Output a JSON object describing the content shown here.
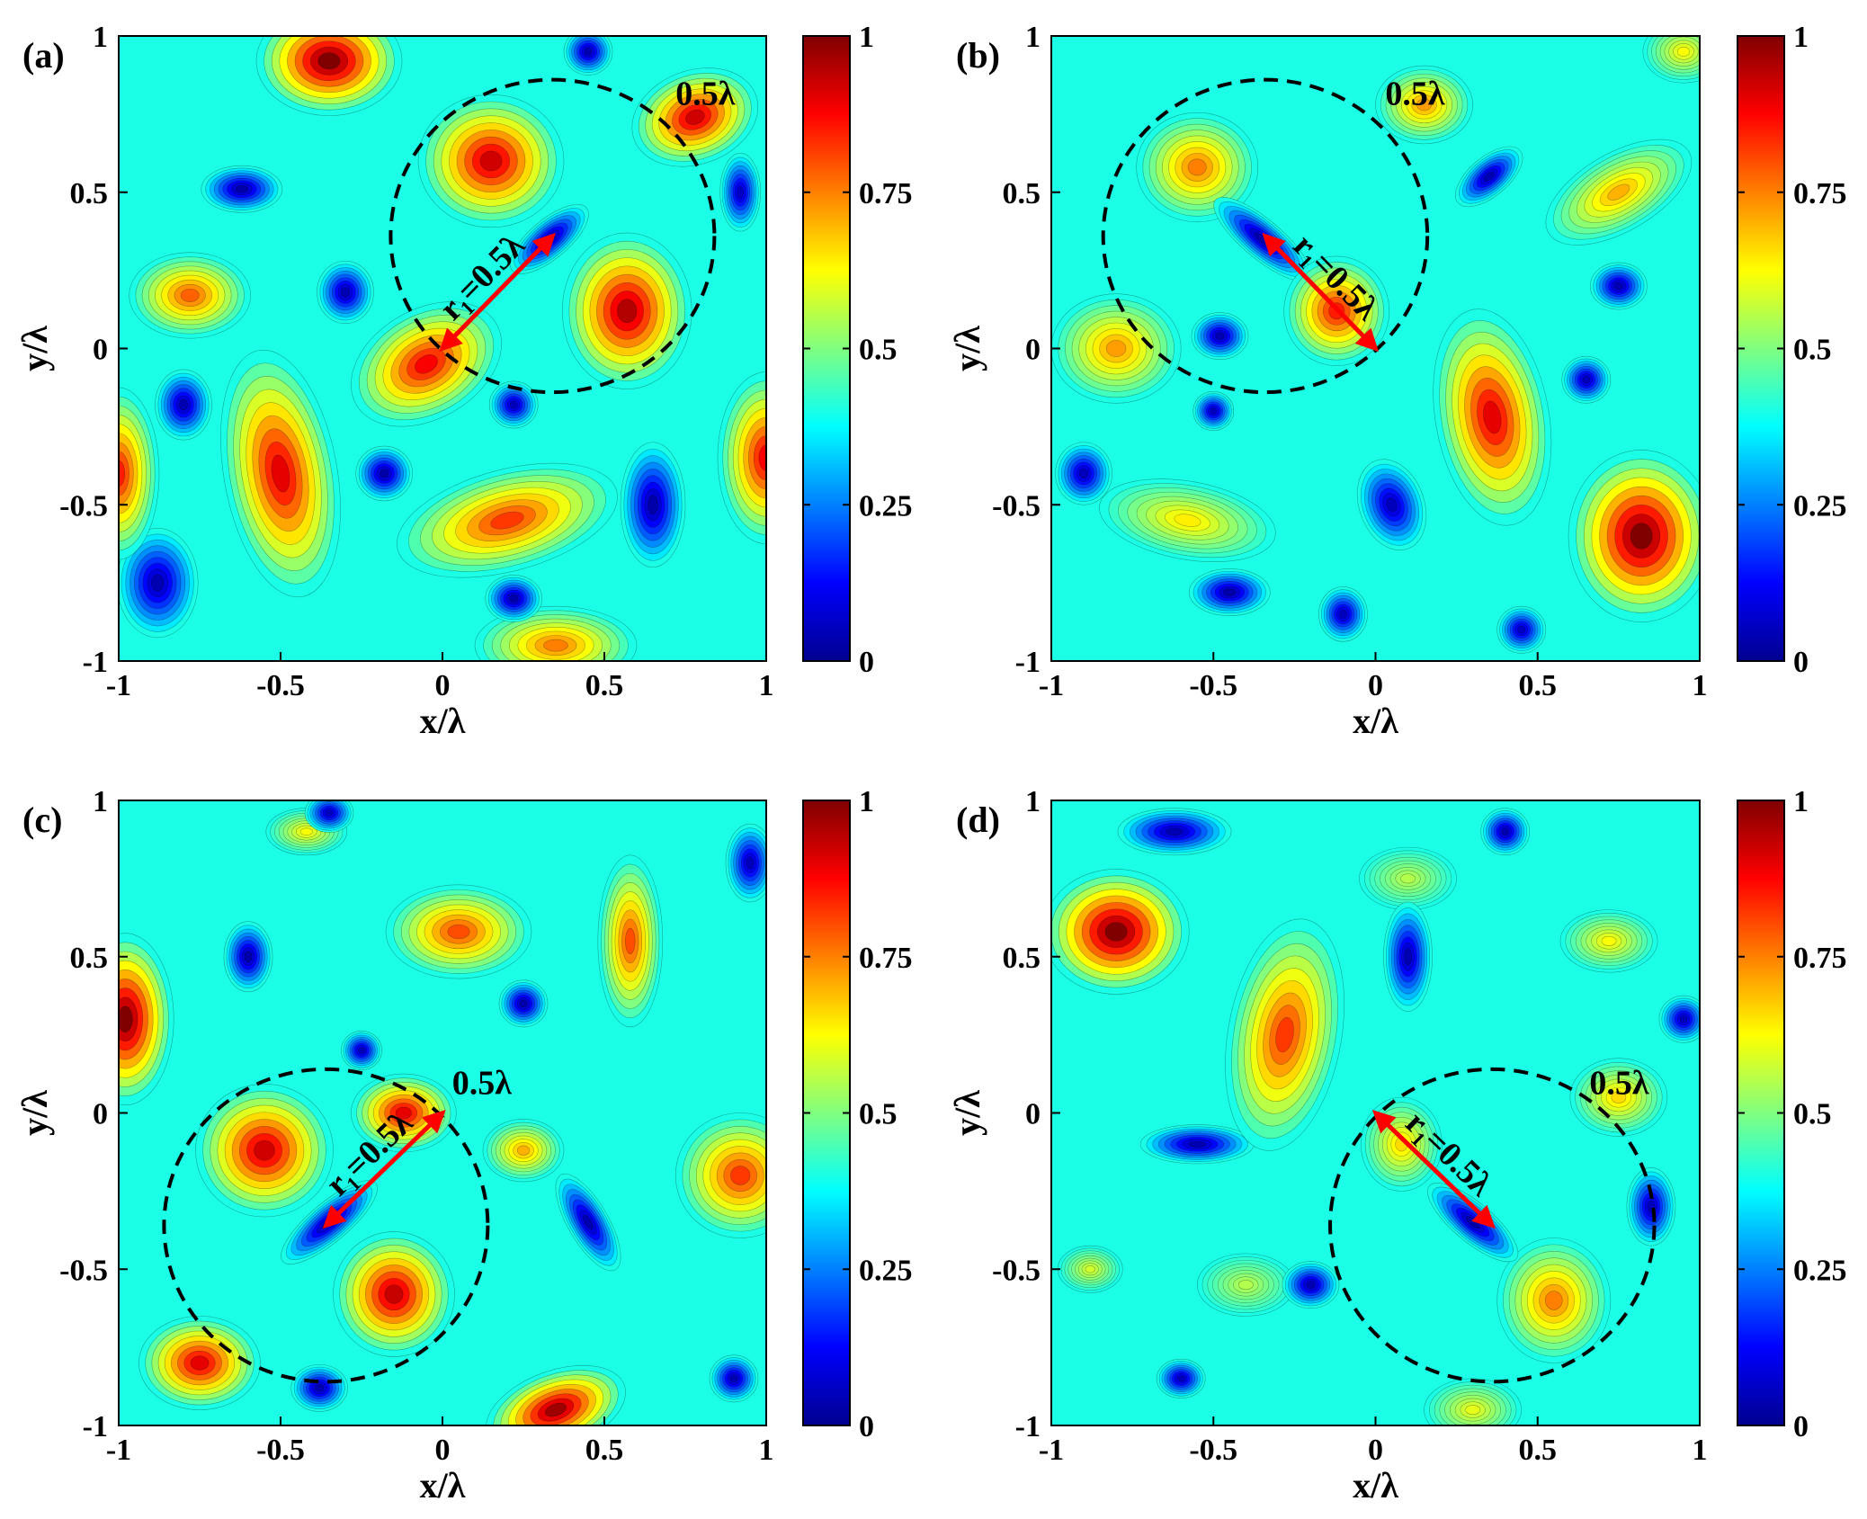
{
  "colormap": [
    "#00008f",
    "#0000ff",
    "#0080ff",
    "#00ffff",
    "#80ff80",
    "#ffff00",
    "#ff8000",
    "#ff0000",
    "#800000"
  ],
  "chart_data": [
    {
      "type": "heatmap",
      "panel_label": "(a)",
      "xlabel": "x/λ",
      "ylabel": "y/λ",
      "xlim": [
        -1,
        1
      ],
      "ylim": [
        -1,
        1
      ],
      "xticks": [
        "-1",
        "-0.5",
        "0",
        "0.5",
        "1"
      ],
      "yticks": [
        "-1",
        "-0.5",
        "0",
        "0.5",
        "1"
      ],
      "colorbar": {
        "ticks": [
          "0",
          "0.25",
          "0.5",
          "0.75",
          "1"
        ],
        "range": [
          0,
          1
        ]
      },
      "circle": {
        "cx": 0.34,
        "cy": 0.36,
        "r": 0.5,
        "label": "0.5λ",
        "label_pos": [
          0.72,
          0.78
        ]
      },
      "arrow": {
        "from": [
          0,
          0
        ],
        "to": [
          0.34,
          0.36
        ],
        "label": "r₁=0.5λ"
      },
      "blobs": [
        {
          "x": -0.35,
          "y": 0.92,
          "a": 0.18,
          "b": 0.14,
          "rot": 0,
          "v": 1.0
        },
        {
          "x": 0.15,
          "y": 0.6,
          "a": 0.18,
          "b": 0.17,
          "rot": 0,
          "v": 0.92
        },
        {
          "x": 0.78,
          "y": 0.74,
          "a": 0.16,
          "b": 0.12,
          "rot": 20,
          "v": 0.92
        },
        {
          "x": -0.78,
          "y": 0.17,
          "a": 0.15,
          "b": 0.11,
          "rot": 0,
          "v": 0.78
        },
        {
          "x": 0.57,
          "y": 0.12,
          "a": 0.16,
          "b": 0.2,
          "rot": 0,
          "v": 0.95
        },
        {
          "x": -0.05,
          "y": -0.05,
          "a": 0.2,
          "b": 0.14,
          "rot": 30,
          "v": 0.88
        },
        {
          "x": -0.5,
          "y": -0.4,
          "a": 0.14,
          "b": 0.32,
          "rot": 10,
          "v": 0.9
        },
        {
          "x": 0.2,
          "y": -0.55,
          "a": 0.28,
          "b": 0.13,
          "rot": 15,
          "v": 0.82
        },
        {
          "x": 1.0,
          "y": -0.35,
          "a": 0.12,
          "b": 0.22,
          "rot": 0,
          "v": 0.88
        },
        {
          "x": -1.0,
          "y": -0.4,
          "a": 0.1,
          "b": 0.22,
          "rot": 0,
          "v": 0.85
        },
        {
          "x": 0.35,
          "y": -0.95,
          "a": 0.2,
          "b": 0.1,
          "rot": 0,
          "v": 0.75
        },
        {
          "x": -0.62,
          "y": 0.51,
          "a": 0.1,
          "b": 0.06,
          "rot": 0,
          "v": 0.03
        },
        {
          "x": 0.33,
          "y": 0.35,
          "a": 0.12,
          "b": 0.05,
          "rot": 40,
          "v": 0.03
        },
        {
          "x": -0.3,
          "y": 0.18,
          "a": 0.07,
          "b": 0.08,
          "rot": 0,
          "v": 0.04
        },
        {
          "x": -0.8,
          "y": -0.18,
          "a": 0.07,
          "b": 0.09,
          "rot": 0,
          "v": 0.04
        },
        {
          "x": -0.18,
          "y": -0.4,
          "a": 0.07,
          "b": 0.07,
          "rot": 0,
          "v": 0.03
        },
        {
          "x": 0.22,
          "y": -0.18,
          "a": 0.06,
          "b": 0.06,
          "rot": 0,
          "v": 0.05
        },
        {
          "x": 0.65,
          "y": -0.5,
          "a": 0.08,
          "b": 0.16,
          "rot": 0,
          "v": 0.03
        },
        {
          "x": 0.22,
          "y": -0.8,
          "a": 0.07,
          "b": 0.06,
          "rot": 0,
          "v": 0.03
        },
        {
          "x": -0.88,
          "y": -0.75,
          "a": 0.1,
          "b": 0.14,
          "rot": 0,
          "v": 0.04
        },
        {
          "x": 0.45,
          "y": 0.95,
          "a": 0.06,
          "b": 0.06,
          "rot": 0,
          "v": 0.04
        },
        {
          "x": 0.92,
          "y": 0.5,
          "a": 0.05,
          "b": 0.1,
          "rot": 0,
          "v": 0.06
        }
      ]
    },
    {
      "type": "heatmap",
      "panel_label": "(b)",
      "xlabel": "x/λ",
      "ylabel": "y/λ",
      "xlim": [
        -1,
        1
      ],
      "ylim": [
        -1,
        1
      ],
      "xticks": [
        "-1",
        "-0.5",
        "0",
        "0.5",
        "1"
      ],
      "yticks": [
        "-1",
        "-0.5",
        "0",
        "0.5",
        "1"
      ],
      "colorbar": {
        "ticks": [
          "0",
          "0.25",
          "0.5",
          "0.75",
          "1"
        ],
        "range": [
          0,
          1
        ]
      },
      "circle": {
        "cx": -0.34,
        "cy": 0.36,
        "r": 0.5,
        "label": "0.5λ",
        "label_pos": [
          0.03,
          0.78
        ]
      },
      "arrow": {
        "from": [
          0,
          0
        ],
        "to": [
          -0.34,
          0.36
        ],
        "label": "r₁=0.5λ"
      },
      "blobs": [
        {
          "x": -0.55,
          "y": 0.58,
          "a": 0.15,
          "b": 0.14,
          "rot": 0,
          "v": 0.75
        },
        {
          "x": 0.15,
          "y": 0.78,
          "a": 0.12,
          "b": 0.1,
          "rot": 0,
          "v": 0.72
        },
        {
          "x": -0.12,
          "y": 0.12,
          "a": 0.13,
          "b": 0.14,
          "rot": 0,
          "v": 0.85
        },
        {
          "x": 0.75,
          "y": 0.5,
          "a": 0.2,
          "b": 0.1,
          "rot": 30,
          "v": 0.7
        },
        {
          "x": -0.8,
          "y": 0.0,
          "a": 0.16,
          "b": 0.14,
          "rot": 0,
          "v": 0.72
        },
        {
          "x": 0.36,
          "y": -0.22,
          "a": 0.14,
          "b": 0.28,
          "rot": 10,
          "v": 0.9
        },
        {
          "x": 0.82,
          "y": -0.6,
          "a": 0.18,
          "b": 0.22,
          "rot": 0,
          "v": 1.0
        },
        {
          "x": -0.58,
          "y": -0.55,
          "a": 0.22,
          "b": 0.1,
          "rot": -10,
          "v": 0.64
        },
        {
          "x": 0.95,
          "y": 0.95,
          "a": 0.1,
          "b": 0.08,
          "rot": 0,
          "v": 0.62
        },
        {
          "x": -0.35,
          "y": 0.35,
          "a": 0.15,
          "b": 0.05,
          "rot": -40,
          "v": 0.03
        },
        {
          "x": 0.35,
          "y": 0.55,
          "a": 0.1,
          "b": 0.05,
          "rot": 40,
          "v": 0.04
        },
        {
          "x": -0.48,
          "y": 0.04,
          "a": 0.07,
          "b": 0.06,
          "rot": 0,
          "v": 0.04
        },
        {
          "x": -0.9,
          "y": -0.4,
          "a": 0.07,
          "b": 0.08,
          "rot": 0,
          "v": 0.05
        },
        {
          "x": -0.45,
          "y": -0.78,
          "a": 0.1,
          "b": 0.06,
          "rot": 0,
          "v": 0.03
        },
        {
          "x": 0.75,
          "y": 0.2,
          "a": 0.07,
          "b": 0.06,
          "rot": 0,
          "v": 0.04
        },
        {
          "x": 0.05,
          "y": -0.5,
          "a": 0.08,
          "b": 0.12,
          "rot": 20,
          "v": 0.05
        },
        {
          "x": 0.65,
          "y": -0.1,
          "a": 0.06,
          "b": 0.06,
          "rot": 0,
          "v": 0.05
        },
        {
          "x": -0.5,
          "y": -0.2,
          "a": 0.05,
          "b": 0.05,
          "rot": 0,
          "v": 0.05
        },
        {
          "x": -0.1,
          "y": -0.85,
          "a": 0.06,
          "b": 0.07,
          "rot": 0,
          "v": 0.05
        },
        {
          "x": 0.45,
          "y": -0.9,
          "a": 0.06,
          "b": 0.06,
          "rot": 0,
          "v": 0.06
        }
      ]
    },
    {
      "type": "heatmap",
      "panel_label": "(c)",
      "xlabel": "x/λ",
      "ylabel": "y/λ",
      "xlim": [
        -1,
        1
      ],
      "ylim": [
        -1,
        1
      ],
      "xticks": [
        "-1",
        "-0.5",
        "0",
        "0.5",
        "1"
      ],
      "yticks": [
        "-1",
        "-0.5",
        "0",
        "0.5",
        "1"
      ],
      "colorbar": {
        "ticks": [
          "0",
          "0.25",
          "0.5",
          "0.75",
          "1"
        ],
        "range": [
          0,
          1
        ]
      },
      "circle": {
        "cx": -0.36,
        "cy": -0.36,
        "r": 0.5,
        "label": "0.5λ",
        "label_pos": [
          0.03,
          0.06
        ]
      },
      "arrow": {
        "from": [
          0,
          0
        ],
        "to": [
          -0.36,
          -0.36
        ],
        "label": "r₁=0.5λ"
      },
      "blobs": [
        {
          "x": -0.98,
          "y": 0.3,
          "a": 0.12,
          "b": 0.22,
          "rot": 0,
          "v": 1.0
        },
        {
          "x": -0.55,
          "y": -0.12,
          "a": 0.17,
          "b": 0.17,
          "rot": 0,
          "v": 0.92
        },
        {
          "x": -0.12,
          "y": 0.0,
          "a": 0.13,
          "b": 0.1,
          "rot": 0,
          "v": 0.9
        },
        {
          "x": -0.15,
          "y": -0.58,
          "a": 0.15,
          "b": 0.16,
          "rot": 0,
          "v": 0.93
        },
        {
          "x": -0.75,
          "y": -0.8,
          "a": 0.15,
          "b": 0.12,
          "rot": 0,
          "v": 0.9
        },
        {
          "x": 0.35,
          "y": -0.95,
          "a": 0.18,
          "b": 0.1,
          "rot": 20,
          "v": 0.97
        },
        {
          "x": 0.05,
          "y": 0.58,
          "a": 0.18,
          "b": 0.12,
          "rot": 0,
          "v": 0.8
        },
        {
          "x": 0.58,
          "y": 0.55,
          "a": 0.08,
          "b": 0.22,
          "rot": 0,
          "v": 0.8
        },
        {
          "x": 0.92,
          "y": -0.2,
          "a": 0.16,
          "b": 0.16,
          "rot": 0,
          "v": 0.82
        },
        {
          "x": -0.42,
          "y": 0.9,
          "a": 0.1,
          "b": 0.06,
          "rot": 0,
          "v": 0.62
        },
        {
          "x": 0.25,
          "y": -0.12,
          "a": 0.1,
          "b": 0.08,
          "rot": 0,
          "v": 0.7
        },
        {
          "x": -0.35,
          "y": -0.35,
          "a": 0.15,
          "b": 0.05,
          "rot": 40,
          "v": 0.03
        },
        {
          "x": -0.6,
          "y": 0.5,
          "a": 0.06,
          "b": 0.09,
          "rot": 0,
          "v": 0.03
        },
        {
          "x": 0.25,
          "y": 0.35,
          "a": 0.06,
          "b": 0.06,
          "rot": 0,
          "v": 0.03
        },
        {
          "x": -0.25,
          "y": 0.2,
          "a": 0.05,
          "b": 0.05,
          "rot": 0,
          "v": 0.05
        },
        {
          "x": 0.45,
          "y": -0.35,
          "a": 0.05,
          "b": 0.14,
          "rot": 30,
          "v": 0.04
        },
        {
          "x": -0.38,
          "y": -0.88,
          "a": 0.07,
          "b": 0.06,
          "rot": 0,
          "v": 0.04
        },
        {
          "x": 0.9,
          "y": -0.85,
          "a": 0.06,
          "b": 0.06,
          "rot": 0,
          "v": 0.04
        },
        {
          "x": -0.35,
          "y": 0.96,
          "a": 0.06,
          "b": 0.05,
          "rot": 0,
          "v": 0.06
        },
        {
          "x": 0.95,
          "y": 0.8,
          "a": 0.06,
          "b": 0.1,
          "rot": 0,
          "v": 0.05
        }
      ]
    },
    {
      "type": "heatmap",
      "panel_label": "(d)",
      "xlabel": "x/λ",
      "ylabel": "y/λ",
      "xlim": [
        -1,
        1
      ],
      "ylim": [
        -1,
        1
      ],
      "xticks": [
        "-1",
        "-0.5",
        "0",
        "0.5",
        "1"
      ],
      "yticks": [
        "-1",
        "-0.5",
        "0",
        "0.5",
        "1"
      ],
      "colorbar": {
        "ticks": [
          "0",
          "0.25",
          "0.5",
          "0.75",
          "1"
        ],
        "range": [
          0,
          1
        ]
      },
      "circle": {
        "cx": 0.36,
        "cy": -0.36,
        "r": 0.5,
        "label": "0.5λ",
        "label_pos": [
          0.66,
          0.06
        ]
      },
      "arrow": {
        "from": [
          0,
          0
        ],
        "to": [
          0.36,
          -0.36
        ],
        "label": "r₁=0.5λ"
      },
      "blobs": [
        {
          "x": -0.8,
          "y": 0.58,
          "a": 0.18,
          "b": 0.16,
          "rot": 0,
          "v": 1.0
        },
        {
          "x": -0.28,
          "y": 0.25,
          "a": 0.14,
          "b": 0.3,
          "rot": -10,
          "v": 0.82
        },
        {
          "x": 0.55,
          "y": -0.6,
          "a": 0.14,
          "b": 0.16,
          "rot": 0,
          "v": 0.75
        },
        {
          "x": 0.08,
          "y": -0.1,
          "a": 0.1,
          "b": 0.12,
          "rot": 0,
          "v": 0.66
        },
        {
          "x": 0.75,
          "y": 0.05,
          "a": 0.12,
          "b": 0.1,
          "rot": 0,
          "v": 0.66
        },
        {
          "x": 0.72,
          "y": 0.55,
          "a": 0.12,
          "b": 0.08,
          "rot": 0,
          "v": 0.62
        },
        {
          "x": 0.3,
          "y": -0.95,
          "a": 0.12,
          "b": 0.08,
          "rot": 0,
          "v": 0.6
        },
        {
          "x": -0.88,
          "y": -0.5,
          "a": 0.08,
          "b": 0.06,
          "rot": 0,
          "v": 0.58
        },
        {
          "x": 0.1,
          "y": 0.75,
          "a": 0.12,
          "b": 0.08,
          "rot": 0,
          "v": 0.55
        },
        {
          "x": -0.4,
          "y": -0.55,
          "a": 0.12,
          "b": 0.08,
          "rot": 0,
          "v": 0.55
        },
        {
          "x": 0.3,
          "y": -0.35,
          "a": 0.14,
          "b": 0.05,
          "rot": -40,
          "v": 0.03
        },
        {
          "x": -0.62,
          "y": 0.9,
          "a": 0.14,
          "b": 0.06,
          "rot": 0,
          "v": 0.04
        },
        {
          "x": 0.1,
          "y": 0.5,
          "a": 0.06,
          "b": 0.14,
          "rot": 0,
          "v": 0.04
        },
        {
          "x": -0.55,
          "y": -0.1,
          "a": 0.14,
          "b": 0.05,
          "rot": 0,
          "v": 0.04
        },
        {
          "x": -0.2,
          "y": -0.55,
          "a": 0.07,
          "b": 0.06,
          "rot": 0,
          "v": 0.04
        },
        {
          "x": -0.6,
          "y": -0.85,
          "a": 0.06,
          "b": 0.05,
          "rot": 0,
          "v": 0.05
        },
        {
          "x": 0.4,
          "y": 0.9,
          "a": 0.06,
          "b": 0.06,
          "rot": 0,
          "v": 0.04
        },
        {
          "x": 0.95,
          "y": 0.3,
          "a": 0.06,
          "b": 0.06,
          "rot": 0,
          "v": 0.05
        },
        {
          "x": 0.85,
          "y": -0.3,
          "a": 0.06,
          "b": 0.1,
          "rot": 0,
          "v": 0.05
        }
      ]
    }
  ]
}
